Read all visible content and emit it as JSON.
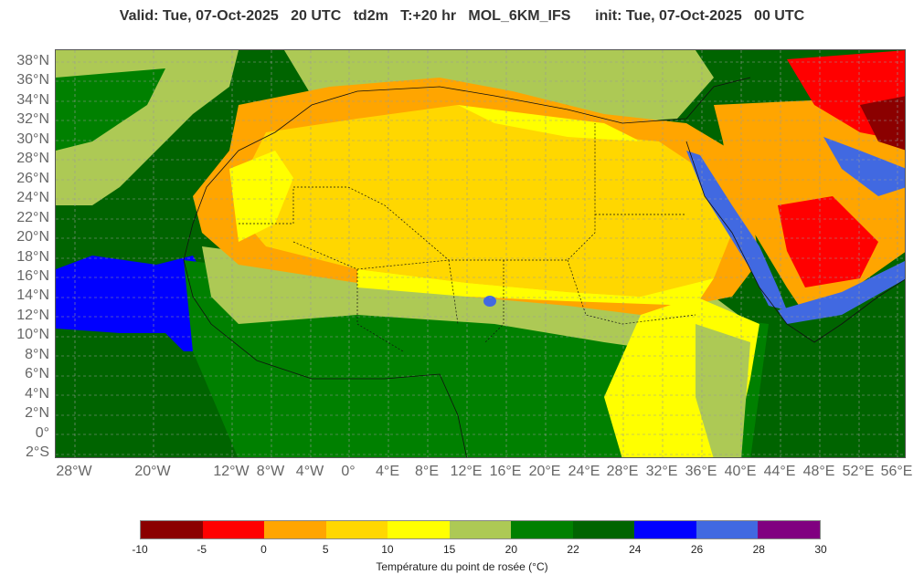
{
  "header": {
    "title": "Valid: Tue, 07-Oct-2025   20 UTC   td2m   T:+20 hr   MOL_6KM_IFS      init: Tue, 07-Oct-2025   00 UTC"
  },
  "map": {
    "lat_labels": [
      "38°N",
      "36°N",
      "34°N",
      "32°N",
      "30°N",
      "28°N",
      "26°N",
      "24°N",
      "22°N",
      "20°N",
      "18°N",
      "16°N",
      "14°N",
      "12°N",
      "10°N",
      "8°N",
      "6°N",
      "4°N",
      "2°N",
      "0°",
      "2°S"
    ],
    "lon_labels": [
      "28°W",
      "20°W",
      "12°W",
      "8°W",
      "4°W",
      "0°",
      "4°E",
      "8°E",
      "12°E",
      "16°E",
      "20°E",
      "24°E",
      "28°E",
      "32°E",
      "36°E",
      "40°E",
      "44°E",
      "48°E",
      "52°E",
      "56°E"
    ],
    "icons": [
      "country-border-lines",
      "coastline-lines",
      "gridline-lines"
    ]
  },
  "colorbar": {
    "label": "Température du point de rosée (°C)",
    "ticks": [
      "-10",
      "-5",
      "0",
      "5",
      "10",
      "15",
      "20",
      "22",
      "24",
      "26",
      "28",
      "30"
    ],
    "colors": [
      "#8b0000",
      "#ff0000",
      "#ffa500",
      "#ffd700",
      "#ffff00",
      "#adc955",
      "#008000",
      "#006400",
      "#0000ff",
      "#4169e1",
      "#800080"
    ]
  }
}
